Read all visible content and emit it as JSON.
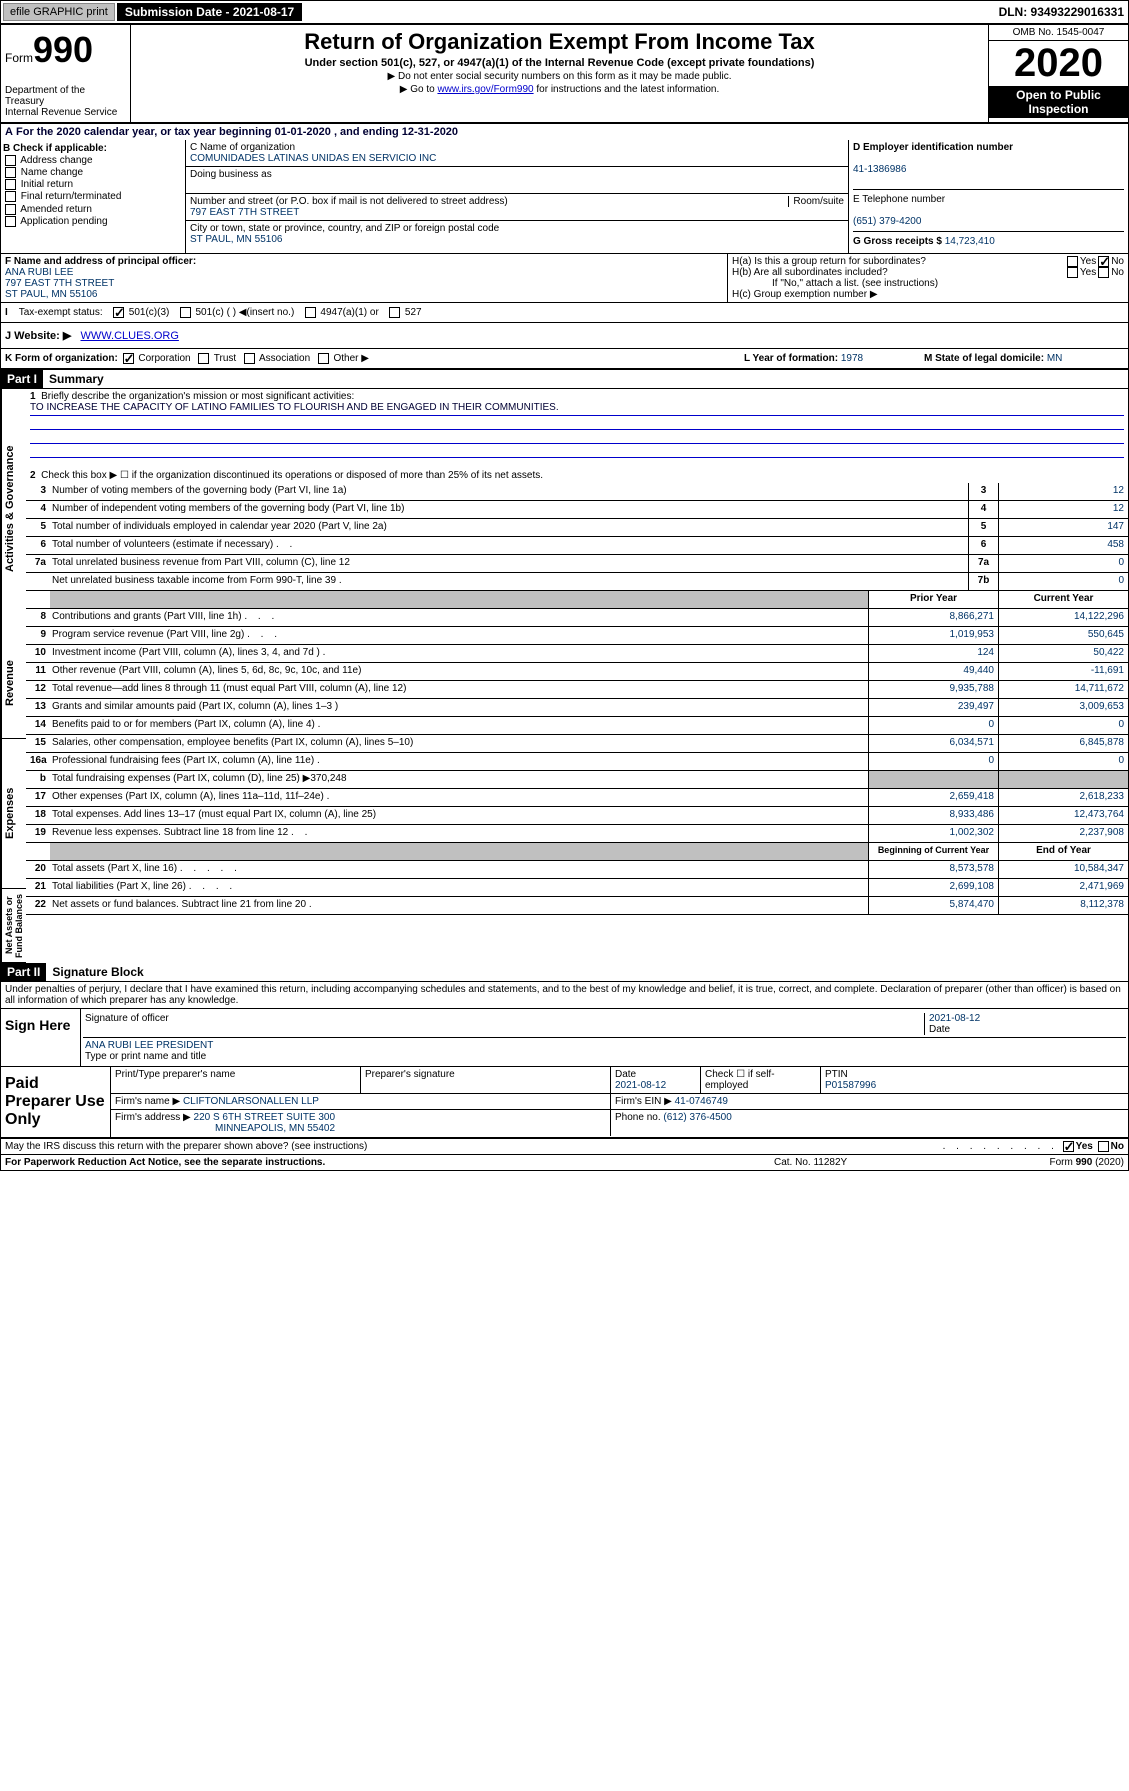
{
  "topbar": {
    "efile": "efile GRAPHIC print",
    "submission": "Submission Date - 2021-08-17",
    "dln": "DLN: 93493229016331"
  },
  "header": {
    "form_label": "Form",
    "form_num": "990",
    "title": "Return of Organization Exempt From Income Tax",
    "subtitle": "Under section 501(c), 527, or 4947(a)(1) of the Internal Revenue Code (except private foundations)",
    "instr1": "▶ Do not enter social security numbers on this form as it may be made public.",
    "instr2_pre": "▶ Go to ",
    "instr2_link": "www.irs.gov/Form990",
    "instr2_post": " for instructions and the latest information.",
    "omb": "OMB No. 1545-0047",
    "year": "2020",
    "open1": "Open to Public",
    "open2": "Inspection",
    "dept": "Department of the Treasury\nInternal Revenue Service"
  },
  "line_a": "For the 2020 calendar year, or tax year beginning 01-01-2020    , and ending 12-31-2020",
  "section_b": {
    "label": "B Check if applicable:",
    "opts": [
      "Address change",
      "Name change",
      "Initial return",
      "Final return/terminated",
      "Amended return",
      "Application pending"
    ]
  },
  "section_c": {
    "name_label": "C Name of organization",
    "name": "COMUNIDADES LATINAS UNIDAS EN SERVICIO INC",
    "dba_label": "Doing business as",
    "addr_label": "Number and street (or P.O. box if mail is not delivered to street address)",
    "room_label": "Room/suite",
    "addr": "797 EAST 7TH STREET",
    "city_label": "City or town, state or province, country, and ZIP or foreign postal code",
    "city": "ST PAUL, MN  55106"
  },
  "section_d": {
    "label": "D Employer identification number",
    "val": "41-1386986"
  },
  "section_e": {
    "label": "E Telephone number",
    "val": "(651) 379-4200"
  },
  "section_g": {
    "label": "G Gross receipts $",
    "val": "14,723,410"
  },
  "section_f": {
    "label": "F  Name and address of principal officer:",
    "name": "ANA RUBI LEE",
    "addr": "797 EAST 7TH STREET",
    "city": "ST PAUL, MN  55106"
  },
  "section_h": {
    "ha": "H(a)  Is this a group return for subordinates?",
    "hb": "H(b)  Are all subordinates included?",
    "hb_note": "If \"No,\" attach a list. (see instructions)",
    "hc": "H(c)  Group exemption number ▶"
  },
  "section_i": {
    "label": "Tax-exempt status:",
    "opts": [
      "501(c)(3)",
      "501(c) (   ) ◀(insert no.)",
      "4947(a)(1) or",
      "527"
    ]
  },
  "section_j": {
    "label": "J    Website: ▶",
    "val": "WWW.CLUES.ORG"
  },
  "section_k": {
    "label": "K Form of organization:",
    "opts": [
      "Corporation",
      "Trust",
      "Association",
      "Other ▶"
    ],
    "l_label": "L Year of formation:",
    "l_val": "1978",
    "m_label": "M State of legal domicile:",
    "m_val": "MN"
  },
  "part1": {
    "label": "Part I",
    "title": "Summary",
    "vert1": "Activities & Governance",
    "vert2": "Revenue",
    "vert3": "Expenses",
    "vert4": "Net Assets or Fund Balances",
    "q1": "Briefly describe the organization's mission or most significant activities:",
    "mission": "TO INCREASE THE CAPACITY OF LATINO FAMILIES TO FLOURISH AND BE ENGAGED IN THEIR COMMUNITIES.",
    "q2": "Check this box ▶ ☐  if the organization discontinued its operations or disposed of more than 25% of its net assets.",
    "lines_gov": [
      {
        "n": "3",
        "t": "Number of voting members of the governing body (Part VI, line 1a)",
        "b": "3",
        "v": "12"
      },
      {
        "n": "4",
        "t": "Number of independent voting members of the governing body (Part VI, line 1b)",
        "b": "4",
        "v": "12"
      },
      {
        "n": "5",
        "t": "Total number of individuals employed in calendar year 2020 (Part V, line 2a)",
        "b": "5",
        "v": "147"
      },
      {
        "n": "6",
        "t": "Total number of volunteers (estimate if necessary)",
        "b": "6",
        "v": "458"
      },
      {
        "n": "7a",
        "t": "Total unrelated business revenue from Part VIII, column (C), line 12",
        "b": "7a",
        "v": "0"
      },
      {
        "n": "",
        "t": "Net unrelated business taxable income from Form 990-T, line 39",
        "b": "7b",
        "v": "0"
      }
    ],
    "col_prior": "Prior Year",
    "col_current": "Current Year",
    "col_begin": "Beginning of Current Year",
    "col_end": "End of Year",
    "lines_rev": [
      {
        "n": "8",
        "t": "Contributions and grants (Part VIII, line 1h)",
        "p": "8,866,271",
        "c": "14,122,296"
      },
      {
        "n": "9",
        "t": "Program service revenue (Part VIII, line 2g)",
        "p": "1,019,953",
        "c": "550,645"
      },
      {
        "n": "10",
        "t": "Investment income (Part VIII, column (A), lines 3, 4, and 7d )",
        "p": "124",
        "c": "50,422"
      },
      {
        "n": "11",
        "t": "Other revenue (Part VIII, column (A), lines 5, 6d, 8c, 9c, 10c, and 11e)",
        "p": "49,440",
        "c": "-11,691"
      },
      {
        "n": "12",
        "t": "Total revenue—add lines 8 through 11 (must equal Part VIII, column (A), line 12)",
        "p": "9,935,788",
        "c": "14,711,672"
      }
    ],
    "lines_exp": [
      {
        "n": "13",
        "t": "Grants and similar amounts paid (Part IX, column (A), lines 1–3 )",
        "p": "239,497",
        "c": "3,009,653"
      },
      {
        "n": "14",
        "t": "Benefits paid to or for members (Part IX, column (A), line 4)",
        "p": "0",
        "c": "0"
      },
      {
        "n": "15",
        "t": "Salaries, other compensation, employee benefits (Part IX, column (A), lines 5–10)",
        "p": "6,034,571",
        "c": "6,845,878"
      },
      {
        "n": "16a",
        "t": "Professional fundraising fees (Part IX, column (A), line 11e)",
        "p": "0",
        "c": "0"
      },
      {
        "n": "b",
        "t": "Total fundraising expenses (Part IX, column (D), line 25) ▶370,248",
        "p": "",
        "c": "",
        "shaded": true
      },
      {
        "n": "17",
        "t": "Other expenses (Part IX, column (A), lines 11a–11d, 11f–24e)",
        "p": "2,659,418",
        "c": "2,618,233"
      },
      {
        "n": "18",
        "t": "Total expenses. Add lines 13–17 (must equal Part IX, column (A), line 25)",
        "p": "8,933,486",
        "c": "12,473,764"
      },
      {
        "n": "19",
        "t": "Revenue less expenses. Subtract line 18 from line 12",
        "p": "1,002,302",
        "c": "2,237,908"
      }
    ],
    "lines_net": [
      {
        "n": "20",
        "t": "Total assets (Part X, line 16)",
        "p": "8,573,578",
        "c": "10,584,347"
      },
      {
        "n": "21",
        "t": "Total liabilities (Part X, line 26)",
        "p": "2,699,108",
        "c": "2,471,969"
      },
      {
        "n": "22",
        "t": "Net assets or fund balances. Subtract line 21 from line 20",
        "p": "5,874,470",
        "c": "8,112,378"
      }
    ]
  },
  "part2": {
    "label": "Part II",
    "title": "Signature Block",
    "perjury": "Under penalties of perjury, I declare that I have examined this return, including accompanying schedules and statements, and to the best of my knowledge and belief, it is true, correct, and complete. Declaration of preparer (other than officer) is based on all information of which preparer has any knowledge.",
    "sign_here": "Sign Here",
    "sig_officer": "Signature of officer",
    "date_label": "Date",
    "sig_date": "2021-08-12",
    "name_title": "ANA RUBI LEE  PRESIDENT",
    "type_label": "Type or print name and title",
    "paid_label": "Paid Preparer Use Only",
    "prep_name_label": "Print/Type preparer's name",
    "prep_sig_label": "Preparer's signature",
    "prep_date": "2021-08-12",
    "check_self": "Check ☐ if self-employed",
    "ptin_label": "PTIN",
    "ptin": "P01587996",
    "firm_name_label": "Firm's name     ▶",
    "firm_name": "CLIFTONLARSONALLEN LLP",
    "firm_ein_label": "Firm's EIN ▶",
    "firm_ein": "41-0746749",
    "firm_addr_label": "Firm's address ▶",
    "firm_addr": "220 S 6TH STREET SUITE 300",
    "firm_city": "MINNEAPOLIS, MN  55402",
    "phone_label": "Phone no.",
    "phone": "(612) 376-4500",
    "discuss": "May the IRS discuss this return with the preparer shown above? (see instructions)"
  },
  "footer": {
    "paperwork": "For Paperwork Reduction Act Notice, see the separate instructions.",
    "cat": "Cat. No. 11282Y",
    "form": "Form 990 (2020)"
  }
}
